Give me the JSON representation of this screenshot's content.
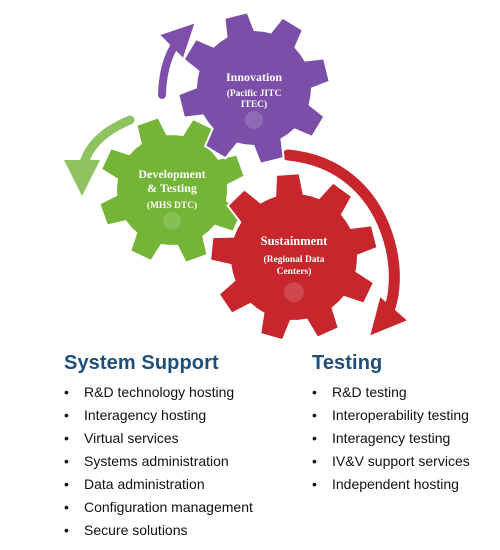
{
  "gears": [
    {
      "id": "innovation",
      "color": "#7b4fa8",
      "lines": [
        "Innovation"
      ],
      "sub": [
        "(Pacific JITC",
        "ITEC)"
      ]
    },
    {
      "id": "development",
      "color": "#74b436",
      "lines": [
        "Development",
        "& Testing"
      ],
      "sub": [
        "(MHS DTC)"
      ]
    },
    {
      "id": "sustainment",
      "color": "#c7262c",
      "lines": [
        "Sustainment"
      ],
      "sub": [
        "(Regional Data",
        "Centers)"
      ]
    }
  ],
  "arrows": [
    {
      "id": "purple-arrow",
      "color": "#7e4fab"
    },
    {
      "id": "green-arrow",
      "color": "#8fc260"
    },
    {
      "id": "red-arrow",
      "color": "#c7262c"
    }
  ],
  "system_support": {
    "heading": "System Support",
    "items": [
      "R&D technology hosting",
      "Interagency hosting",
      "Virtual services",
      "Systems administration",
      "Data administration",
      "Configuration management",
      "Secure solutions"
    ]
  },
  "testing": {
    "heading": "Testing",
    "items": [
      "R&D testing",
      "Interoperability testing",
      "Interagency testing",
      "IV&V support services",
      "Independent hosting"
    ]
  }
}
